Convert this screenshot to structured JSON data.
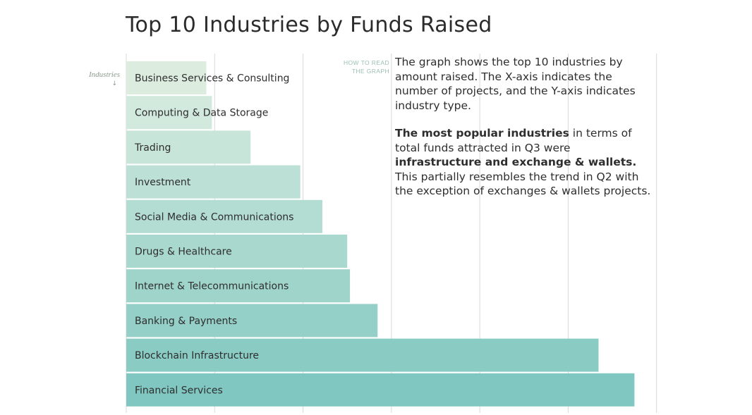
{
  "title": "Top 10 Industries by Funds Raised",
  "how_to_read": "HOW TO READ THE GRAPH",
  "description": {
    "p1": "The graph shows the top 10 industries by amount raised. The X-axis indicates the number of projects, and the Y-axis indicates industry type.",
    "p2_bold1": "The most popular industries",
    "p2_text1": " in terms of total funds attracted in Q3 were ",
    "p2_bold2": "infrastructure and exchange & wallets.",
    "p2_text2": " This partially resembles the trend in Q2 with the exception of exchanges & wallets projects."
  },
  "chart_data": {
    "type": "bar",
    "orientation": "horizontal",
    "ylabel": "Industries",
    "categories": [
      "Business Services & Consulting",
      "Computing & Data Storage",
      "Trading",
      "Investment",
      "Social Media & Communications",
      "Drugs & Healthcare",
      "Internet & Telecommunications",
      "Banking & Payments",
      "Blockchain Infrastructure",
      "Financial Services"
    ],
    "values": [
      14.5,
      15.5,
      22.5,
      31.5,
      35.5,
      40,
      40.5,
      45.5,
      85.5,
      92
    ],
    "xlim": [
      0,
      100
    ],
    "grid": true,
    "colors": {
      "bar_light": "#dcede0",
      "bar_dark": "#80c7c1",
      "grid": "#d9d9d9",
      "label": "#2e2e2e"
    }
  }
}
